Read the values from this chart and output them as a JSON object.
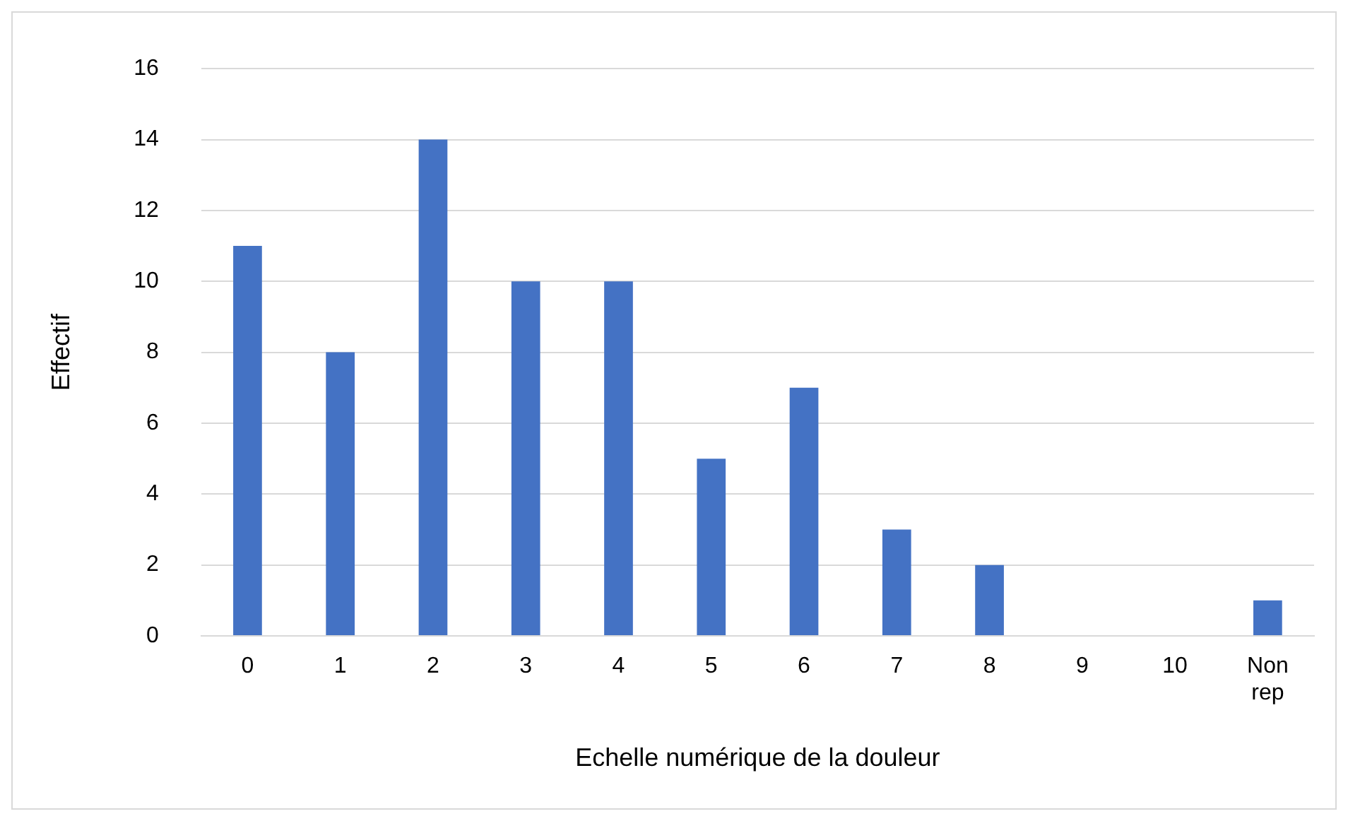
{
  "chart_data": {
    "type": "bar",
    "xlabel": "Echelle numérique de la douleur",
    "ylabel": "Effectif",
    "categories": [
      "0",
      "1",
      "2",
      "3",
      "4",
      "5",
      "6",
      "7",
      "8",
      "9",
      "10",
      "Non rep"
    ],
    "values": [
      11,
      8,
      14,
      10,
      10,
      5,
      7,
      3,
      2,
      0,
      0,
      1
    ],
    "color": "#4472c4",
    "ylim": [
      0,
      16
    ],
    "yticks": [
      0,
      2,
      4,
      6,
      8,
      10,
      12,
      14,
      16
    ],
    "grid": "y"
  }
}
